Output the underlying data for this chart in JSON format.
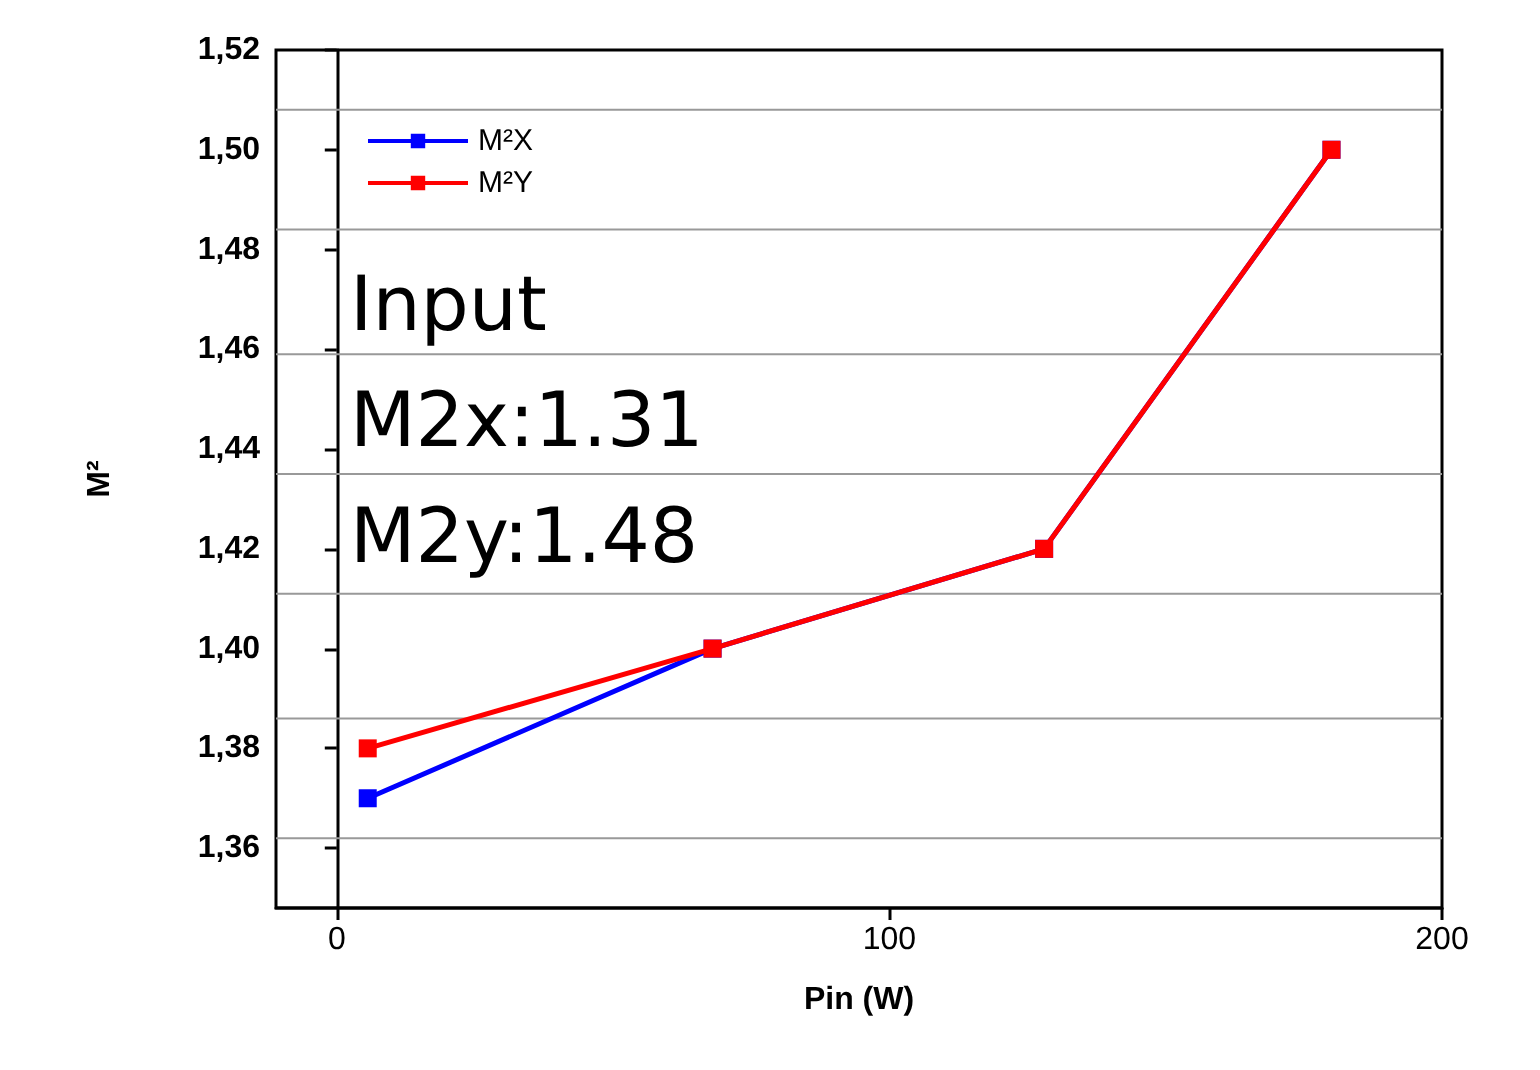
{
  "chart_data": {
    "type": "line",
    "xlabel": "Pin (W)",
    "ylabel": "M²",
    "series": [
      {
        "name": "M²X",
        "color": "#0000ff",
        "x": [
          5.6,
          68,
          128,
          180
        ],
        "values": [
          1.37,
          1.4,
          1.42,
          1.5
        ]
      },
      {
        "name": "M²Y",
        "color": "#ff0000",
        "x": [
          5.6,
          68,
          128,
          180
        ],
        "values": [
          1.38,
          1.4,
          1.42,
          1.5
        ]
      }
    ],
    "xlim": [
      -11,
      200
    ],
    "xticks": [
      0,
      100,
      200
    ],
    "ylim": [
      1.348,
      1.52
    ],
    "yticks": [
      {
        "value": 1.36,
        "label": "1,36"
      },
      {
        "value": 1.38,
        "label": "1,38"
      },
      {
        "value": 1.4,
        "label": "1,40"
      },
      {
        "value": 1.42,
        "label": "1,42"
      },
      {
        "value": 1.44,
        "label": "1,44"
      },
      {
        "value": 1.46,
        "label": "1,46"
      },
      {
        "value": 1.48,
        "label": "1,48"
      },
      {
        "value": 1.5,
        "label": "1,50"
      },
      {
        "value": 1.52,
        "label": "1,52"
      }
    ],
    "ref_lines": [
      {
        "axis": "y",
        "value": 1.362,
        "color": "#999999"
      },
      {
        "axis": "y",
        "value": 1.386,
        "color": "#999999"
      },
      {
        "axis": "y",
        "value": 1.411,
        "color": "#999999"
      },
      {
        "axis": "y",
        "value": 1.435,
        "color": "#999999"
      },
      {
        "axis": "y",
        "value": 1.459,
        "color": "#999999"
      },
      {
        "axis": "y",
        "value": 1.484,
        "color": "#999999"
      },
      {
        "axis": "y",
        "value": 1.508,
        "color": "#999999"
      }
    ],
    "annotations": [
      "Input",
      "M2x:1.31",
      "M2y:1.48"
    ],
    "legend": "top left",
    "marker": "square",
    "line_style": "solid"
  }
}
